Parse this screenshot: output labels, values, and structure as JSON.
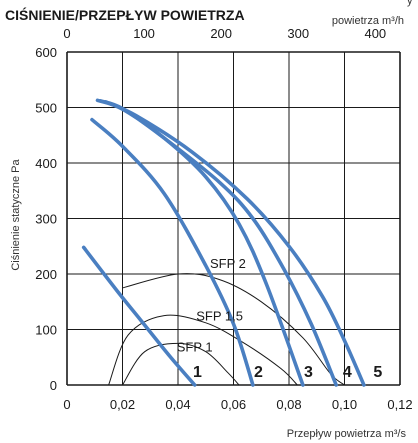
{
  "title": "CIŚNIENIE/PRZEPŁYW POWIETRZA",
  "chart_data": {
    "type": "line",
    "title": "CIŚNIENIE/PRZEPŁYW POWIETRZA",
    "xlabel": "Przepływ powietrza m³/s",
    "ylabel": "Ciśnienie statyczne Pa",
    "x2label": "powietrza m³/h",
    "x2label_cut": "y",
    "xlim": [
      0,
      0.12
    ],
    "ylim": [
      0,
      600
    ],
    "x2lim": [
      0,
      432
    ],
    "xticks": [
      0,
      0.02,
      0.04,
      0.06,
      0.08,
      0.1,
      0.12
    ],
    "xtick_labels": [
      "0",
      "0,02",
      "0,04",
      "0,06",
      "0,08",
      "0,10",
      "0,12"
    ],
    "x2ticks": [
      0,
      100,
      200,
      300,
      400
    ],
    "x2tick_labels": [
      "0",
      "100",
      "200",
      "300",
      "400"
    ],
    "yticks": [
      0,
      100,
      200,
      300,
      400,
      500,
      600
    ],
    "ytick_labels": [
      "0",
      "100",
      "200",
      "300",
      "400",
      "500",
      "600"
    ],
    "grid": true,
    "colors": {
      "fan": "#4a7fc1",
      "sfp": "#1a1a1a",
      "grid": "#1a1a1a"
    },
    "series": [
      {
        "name": "1",
        "points": [
          [
            0.006,
            248
          ],
          [
            0.018,
            170
          ],
          [
            0.028,
            108
          ],
          [
            0.037,
            52
          ],
          [
            0.046,
            0
          ]
        ]
      },
      {
        "name": "2",
        "points": [
          [
            0.009,
            478
          ],
          [
            0.02,
            430
          ],
          [
            0.035,
            345
          ],
          [
            0.05,
            215
          ],
          [
            0.06,
            110
          ],
          [
            0.067,
            0
          ]
        ]
      },
      {
        "name": "3",
        "points": [
          [
            0.011,
            513
          ],
          [
            0.02,
            497
          ],
          [
            0.035,
            445
          ],
          [
            0.05,
            375
          ],
          [
            0.062,
            290
          ],
          [
            0.072,
            180
          ],
          [
            0.085,
            0
          ]
        ]
      },
      {
        "name": "4",
        "points": [
          [
            0.012,
            512
          ],
          [
            0.02,
            498
          ],
          [
            0.035,
            445
          ],
          [
            0.055,
            365
          ],
          [
            0.067,
            300
          ],
          [
            0.078,
            210
          ],
          [
            0.088,
            110
          ],
          [
            0.097,
            0
          ]
        ]
      },
      {
        "name": "5",
        "points": [
          [
            0.014,
            510
          ],
          [
            0.025,
            485
          ],
          [
            0.045,
            420
          ],
          [
            0.065,
            335
          ],
          [
            0.08,
            250
          ],
          [
            0.092,
            160
          ],
          [
            0.1,
            80
          ],
          [
            0.107,
            0
          ]
        ]
      }
    ],
    "sfp_curves": [
      {
        "name": "SFP 1",
        "points": [
          [
            0.02,
            0
          ],
          [
            0.028,
            60
          ],
          [
            0.04,
            75
          ],
          [
            0.05,
            60
          ],
          [
            0.058,
            22
          ],
          [
            0.062,
            0
          ]
        ]
      },
      {
        "name": "SFP 1,5",
        "points": [
          [
            0.015,
            0
          ],
          [
            0.022,
            90
          ],
          [
            0.035,
            125
          ],
          [
            0.05,
            112
          ],
          [
            0.063,
            78
          ],
          [
            0.077,
            30
          ],
          [
            0.083,
            0
          ]
        ]
      },
      {
        "name": "SFP 2",
        "points": [
          [
            0.02,
            175
          ],
          [
            0.04,
            200
          ],
          [
            0.055,
            190
          ],
          [
            0.07,
            150
          ],
          [
            0.085,
            85
          ],
          [
            0.095,
            20
          ],
          [
            0.1,
            0
          ]
        ]
      }
    ],
    "sfp_labels": [
      {
        "text": "SFP 2",
        "x": 0.058,
        "y": 211
      },
      {
        "text": "SFP 1,5",
        "x": 0.055,
        "y": 116
      },
      {
        "text": "SFP 1",
        "x": 0.046,
        "y": 60
      }
    ],
    "curve_labels": [
      {
        "text": "1",
        "x": 0.047,
        "y": 25
      },
      {
        "text": "2",
        "x": 0.069,
        "y": 25
      },
      {
        "text": "3",
        "x": 0.087,
        "y": 25
      },
      {
        "text": "4",
        "x": 0.101,
        "y": 25
      },
      {
        "text": "5",
        "x": 0.112,
        "y": 25
      }
    ]
  }
}
